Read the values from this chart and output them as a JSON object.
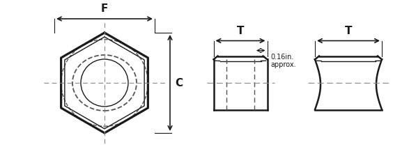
{
  "bg_color": "#ffffff",
  "line_color": "#1a1a1a",
  "dashed_color": "#555555",
  "fig_width": 5.87,
  "fig_height": 2.37,
  "label_F": "F",
  "label_C": "C",
  "label_T": "T",
  "approx_text": "0.16in.\napprox.",
  "lw": 1.8,
  "lw_thin": 1.0
}
